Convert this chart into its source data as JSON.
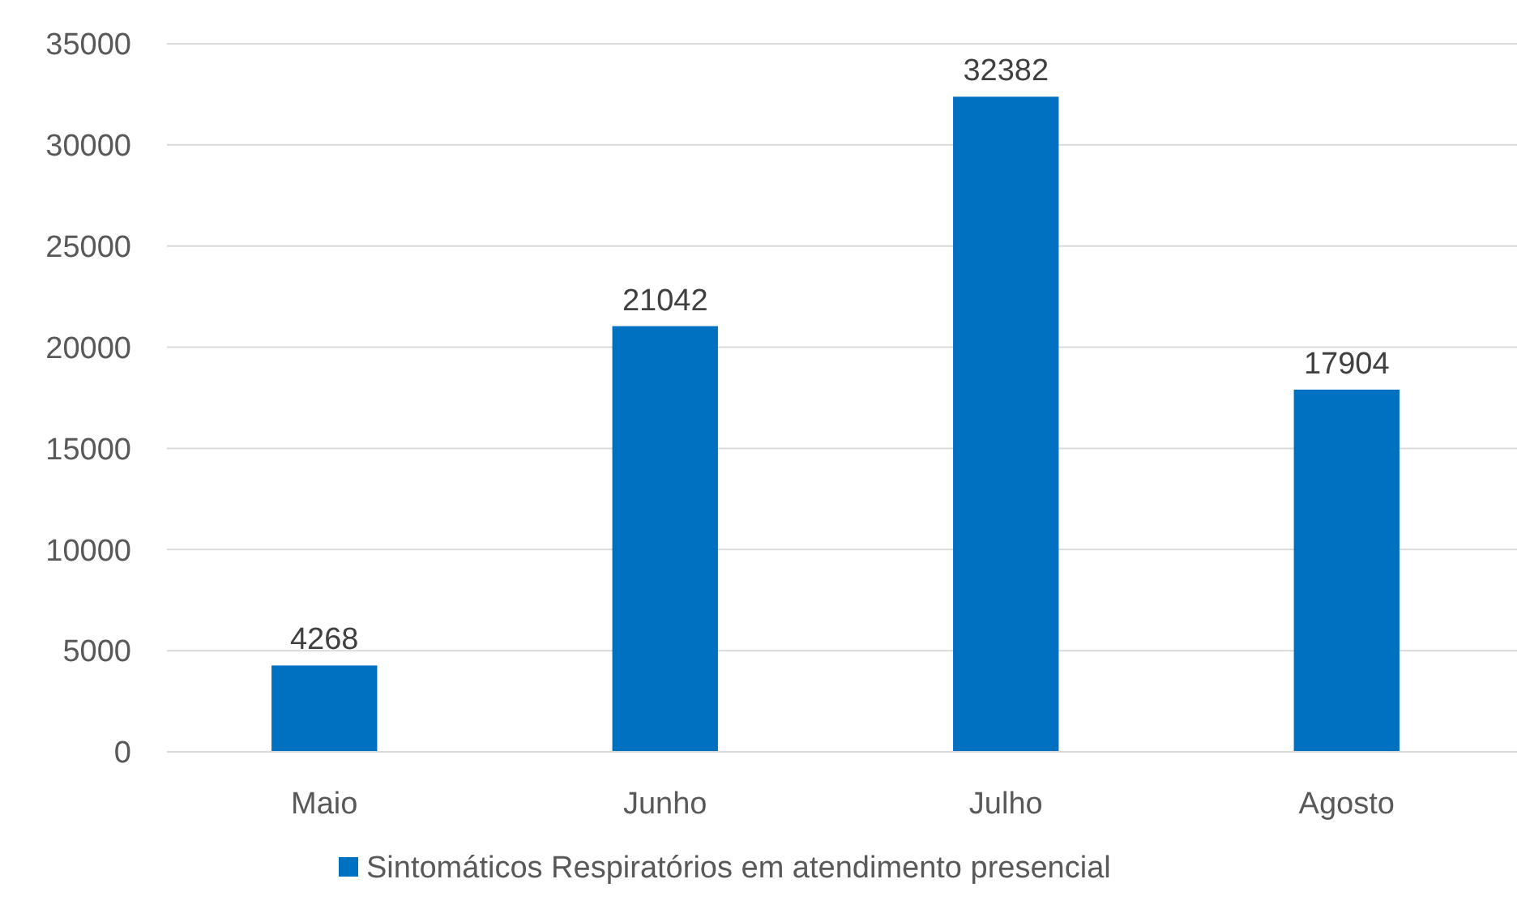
{
  "chart_data": {
    "type": "bar",
    "categories": [
      "Maio",
      "Junho",
      "Julho",
      "Agosto"
    ],
    "series": [
      {
        "name": "Sintomáticos Respiratórios em atendimento presencial",
        "color": "#0070c0",
        "values": [
          4268,
          21042,
          32382,
          17904
        ]
      }
    ],
    "ylim": [
      0,
      35000
    ],
    "yticks": [
      0,
      5000,
      10000,
      15000,
      20000,
      25000,
      30000,
      35000
    ],
    "grid": "y",
    "legend": "bottom",
    "data_labels": true
  }
}
